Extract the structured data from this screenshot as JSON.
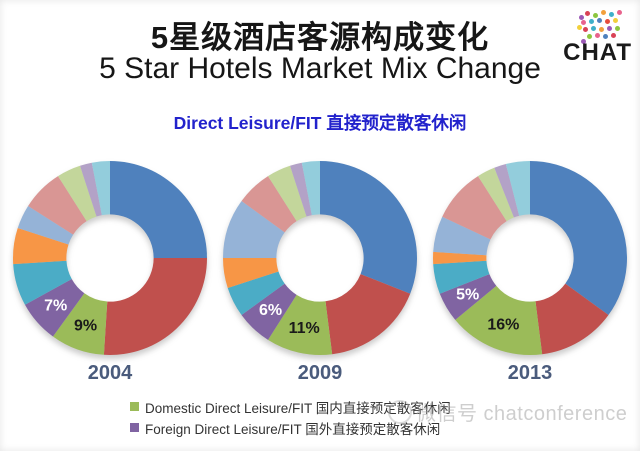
{
  "title": {
    "zh": "5星级酒店客源构成变化",
    "en": "5 Star Hotels Market Mix Change"
  },
  "subtitle": "Direct Leisure/FIT 直接预定散客休闲",
  "logo": {
    "text": "CHAT"
  },
  "watermark": {
    "text": "微信号 chatconference"
  },
  "palette": {
    "series": [
      "#4F81BD",
      "#C0504D",
      "#9BBB59",
      "#8064A2",
      "#4BACC6",
      "#F79646",
      "#95B3D7",
      "#D99694",
      "#C3D69B",
      "#B3A2C7",
      "#93CDDC"
    ],
    "subtitle_blue": "#2222CC",
    "year_label": "#4A5B7C"
  },
  "legend": [
    {
      "label": "Domestic Direct Leisure/FIT 国内直接预定散客休闲",
      "color": "#9BBB59"
    },
    {
      "label": "Foreign Direct Leisure/FIT 国外直接预定散客休闲",
      "color": "#8064A2"
    }
  ],
  "chart_data": [
    {
      "type": "pie",
      "donut": true,
      "donut_hole_ratio": 0.45,
      "title": "2004",
      "categories": [
        "unlabeled-blue",
        "unlabeled-red",
        "Domestic Direct Leisure/FIT 国内直接预定散客休闲",
        "Foreign Direct Leisure/FIT 国外直接预定散客休闲",
        "unlabeled-teal",
        "unlabeled-orange",
        "unlabeled-light-blue",
        "unlabeled-salmon",
        "unlabeled-light-green",
        "unlabeled-light-purple",
        "unlabeled-light-cyan"
      ],
      "segments": [
        {
          "name": "unlabeled-blue",
          "value": 25,
          "label": null
        },
        {
          "name": "unlabeled-red",
          "value": 26,
          "label": null
        },
        {
          "name": "domestic-direct-leisure-fit",
          "value": 9,
          "label": "9%",
          "label_color": "#1a1a1a"
        },
        {
          "name": "foreign-direct-leisure-fit",
          "value": 7,
          "label": "7%",
          "label_color": "#ffffff"
        },
        {
          "name": "unlabeled-teal",
          "value": 7,
          "label": null
        },
        {
          "name": "unlabeled-orange",
          "value": 6,
          "label": null
        },
        {
          "name": "unlabeled-light-blue",
          "value": 4,
          "label": null
        },
        {
          "name": "unlabeled-salmon",
          "value": 7,
          "label": null
        },
        {
          "name": "unlabeled-light-green",
          "value": 4,
          "label": null
        },
        {
          "name": "unlabeled-light-purple",
          "value": 2,
          "label": null
        },
        {
          "name": "unlabeled-light-cyan",
          "value": 3,
          "label": null
        }
      ]
    },
    {
      "type": "pie",
      "donut": true,
      "donut_hole_ratio": 0.45,
      "title": "2009",
      "categories": [
        "unlabeled-blue",
        "unlabeled-red",
        "Domestic Direct Leisure/FIT 国内直接预定散客休闲",
        "Foreign Direct Leisure/FIT 国外直接预定散客休闲",
        "unlabeled-teal",
        "unlabeled-orange",
        "unlabeled-light-blue",
        "unlabeled-salmon",
        "unlabeled-light-green",
        "unlabeled-light-purple",
        "unlabeled-light-cyan"
      ],
      "segments": [
        {
          "name": "unlabeled-blue",
          "value": 31,
          "label": null
        },
        {
          "name": "unlabeled-red",
          "value": 17,
          "label": null
        },
        {
          "name": "domestic-direct-leisure-fit",
          "value": 11,
          "label": "11%",
          "label_color": "#1a1a1a"
        },
        {
          "name": "foreign-direct-leisure-fit",
          "value": 6,
          "label": "6%",
          "label_color": "#ffffff"
        },
        {
          "name": "unlabeled-teal",
          "value": 5,
          "label": null
        },
        {
          "name": "unlabeled-orange",
          "value": 5,
          "label": null
        },
        {
          "name": "unlabeled-light-blue",
          "value": 10,
          "label": null
        },
        {
          "name": "unlabeled-salmon",
          "value": 6,
          "label": null
        },
        {
          "name": "unlabeled-light-green",
          "value": 4,
          "label": null
        },
        {
          "name": "unlabeled-light-purple",
          "value": 2,
          "label": null
        },
        {
          "name": "unlabeled-light-cyan",
          "value": 3,
          "label": null
        }
      ]
    },
    {
      "type": "pie",
      "donut": true,
      "donut_hole_ratio": 0.45,
      "title": "2013",
      "categories": [
        "unlabeled-blue",
        "unlabeled-red",
        "Domestic Direct Leisure/FIT 国内直接预定散客休闲",
        "Foreign Direct Leisure/FIT 国外直接预定散客休闲",
        "unlabeled-teal",
        "unlabeled-orange",
        "unlabeled-light-blue",
        "unlabeled-salmon",
        "unlabeled-light-green",
        "unlabeled-light-purple",
        "unlabeled-light-cyan"
      ],
      "segments": [
        {
          "name": "unlabeled-blue",
          "value": 35,
          "label": null
        },
        {
          "name": "unlabeled-red",
          "value": 13,
          "label": null
        },
        {
          "name": "domestic-direct-leisure-fit",
          "value": 16,
          "label": "16%",
          "label_color": "#1a1a1a"
        },
        {
          "name": "foreign-direct-leisure-fit",
          "value": 5,
          "label": "5%",
          "label_color": "#ffffff"
        },
        {
          "name": "unlabeled-teal",
          "value": 5,
          "label": null
        },
        {
          "name": "unlabeled-orange",
          "value": 2,
          "label": null
        },
        {
          "name": "unlabeled-light-blue",
          "value": 6,
          "label": null
        },
        {
          "name": "unlabeled-salmon",
          "value": 9,
          "label": null
        },
        {
          "name": "unlabeled-light-green",
          "value": 3,
          "label": null
        },
        {
          "name": "unlabeled-light-purple",
          "value": 2,
          "label": null
        },
        {
          "name": "unlabeled-light-cyan",
          "value": 4,
          "label": null
        }
      ]
    }
  ]
}
